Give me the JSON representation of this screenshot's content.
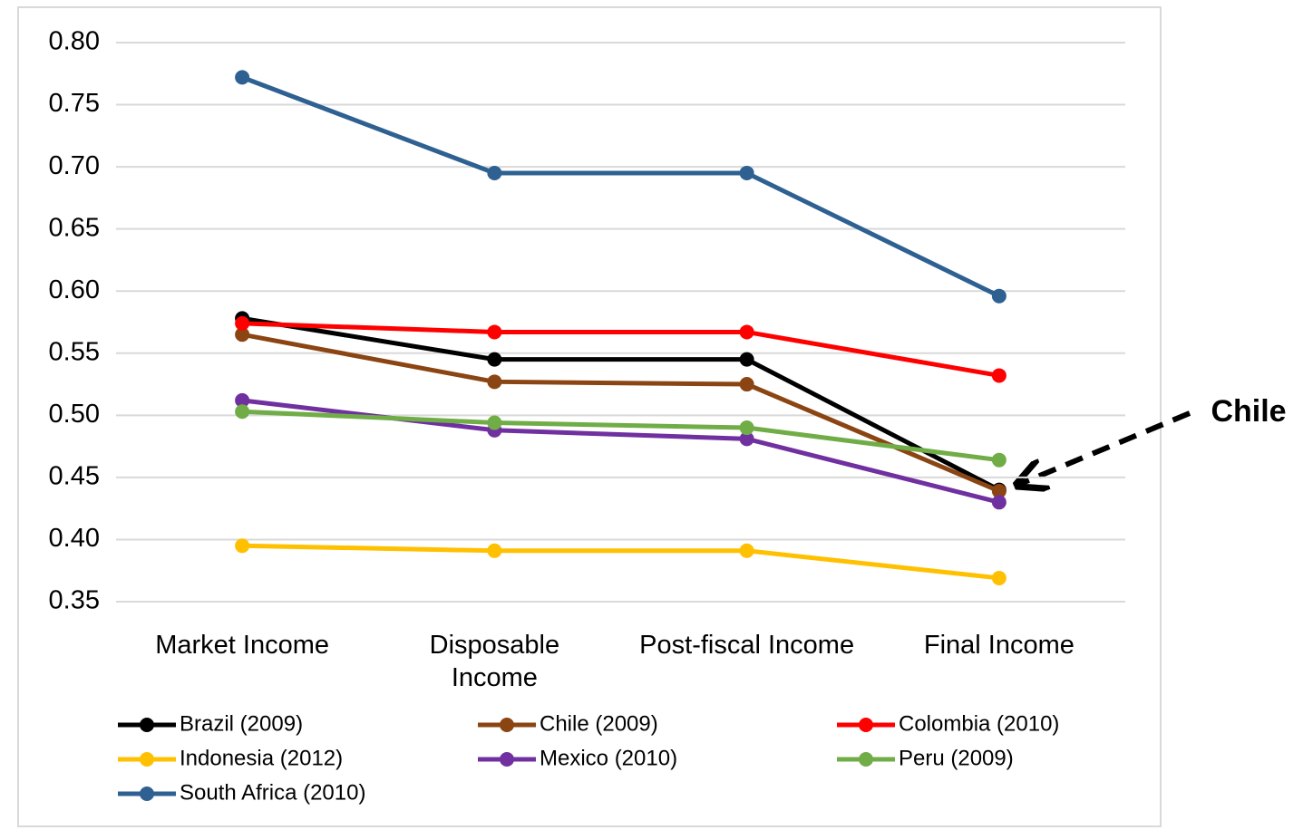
{
  "chart_data": {
    "type": "line",
    "categories": [
      "Market Income",
      "Disposable\nIncome",
      "Post-fiscal Income",
      "Final Income"
    ],
    "series": [
      {
        "name": "Brazil (2009)",
        "color": "#000000",
        "values": [
          0.578,
          0.545,
          0.545,
          0.44
        ]
      },
      {
        "name": "Chile (2009)",
        "color": "#8b4513",
        "values": [
          0.565,
          0.527,
          0.525,
          0.439
        ]
      },
      {
        "name": "Colombia (2010)",
        "color": "#ff0000",
        "values": [
          0.574,
          0.567,
          0.567,
          0.532
        ]
      },
      {
        "name": "Indonesia (2012)",
        "color": "#ffc000",
        "values": [
          0.395,
          0.391,
          0.391,
          0.369
        ]
      },
      {
        "name": "Mexico (2010)",
        "color": "#7030a0",
        "values": [
          0.512,
          0.488,
          0.481,
          0.43
        ]
      },
      {
        "name": "Peru (2009)",
        "color": "#70ad47",
        "values": [
          0.503,
          0.494,
          0.49,
          0.464
        ]
      },
      {
        "name": "South Africa (2010)",
        "color": "#2e6092",
        "values": [
          0.772,
          0.695,
          0.695,
          0.596
        ]
      }
    ],
    "ylim": [
      0.35,
      0.8
    ],
    "yticks": [
      0.35,
      {
        "value": 0.4,
        "label": "0.40"
      },
      0.45,
      {
        "value": 0.5,
        "label": "0.50"
      },
      0.55,
      {
        "value": 0.6,
        "label": "0.60"
      },
      0.65,
      {
        "value": 0.7,
        "label": "0.70"
      },
      0.75,
      {
        "value": 0.8,
        "label": "0.80"
      }
    ],
    "grid": true,
    "legend": "bottom",
    "annotation": "Chile"
  }
}
